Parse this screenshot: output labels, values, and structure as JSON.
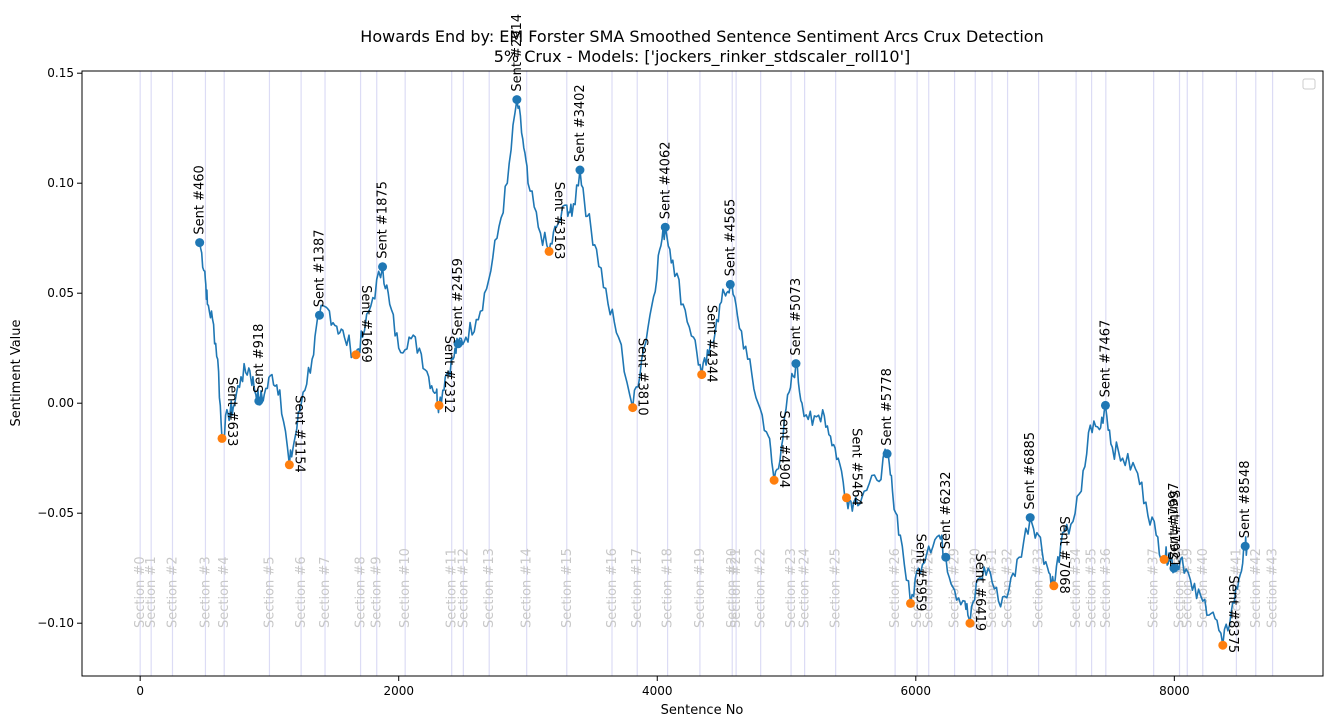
{
  "chart_data": {
    "type": "line",
    "title": "Howards End by: EM Forster SMA Smoothed Sentence Sentiment Arcs Crux Detection",
    "subtitle": "5% Crux -  Models: ['jockers_rinker_stdscaler_roll10']",
    "xlabel": "Sentence No",
    "ylabel": "Sentiment Value",
    "xlim": [
      -450,
      9150
    ],
    "ylim": [
      -0.124,
      0.151
    ],
    "xticks": [
      0,
      2000,
      4000,
      6000,
      8000
    ],
    "xtick_labels": [
      "0",
      "2000",
      "4000",
      "6000",
      "8000"
    ],
    "yticks": [
      -0.1,
      -0.05,
      0.0,
      0.05,
      0.1,
      0.15
    ],
    "ytick_labels": [
      "−0.10",
      "−0.05",
      "0.00",
      "0.05",
      "0.10",
      "0.15"
    ],
    "grid": false,
    "legend": "top-right (empty)",
    "colors": {
      "line": "#1f77b4",
      "peak": "#1f77b4",
      "valley": "#ff7f0e",
      "section_line": "#dcdcf5",
      "section_text": "#c8c8c8"
    },
    "series": [
      {
        "key": "smoothed",
        "points": [
          [
            460,
            0.073
          ],
          [
            500,
            0.06
          ],
          [
            520,
            0.045
          ],
          [
            560,
            0.038
          ],
          [
            600,
            0.02
          ],
          [
            633,
            -0.016
          ],
          [
            680,
            -0.005
          ],
          [
            720,
            -0.002
          ],
          [
            780,
            0.012
          ],
          [
            840,
            0.016
          ],
          [
            880,
            0.008
          ],
          [
            918,
            0.001
          ],
          [
            960,
            0.004
          ],
          [
            1020,
            0.013
          ],
          [
            1080,
            0.006
          ],
          [
            1154,
            -0.028
          ],
          [
            1200,
            -0.015
          ],
          [
            1260,
            0.005
          ],
          [
            1330,
            0.02
          ],
          [
            1387,
            0.04
          ],
          [
            1450,
            0.043
          ],
          [
            1520,
            0.035
          ],
          [
            1580,
            0.03
          ],
          [
            1669,
            0.022
          ],
          [
            1720,
            0.03
          ],
          [
            1800,
            0.048
          ],
          [
            1875,
            0.062
          ],
          [
            1930,
            0.045
          ],
          [
            2000,
            0.025
          ],
          [
            2080,
            0.03
          ],
          [
            2160,
            0.025
          ],
          [
            2232,
            0.012
          ],
          [
            2290,
            0.005
          ],
          [
            2312,
            -0.001
          ],
          [
            2360,
            0.012
          ],
          [
            2420,
            0.02
          ],
          [
            2459,
            0.027
          ],
          [
            2520,
            0.03
          ],
          [
            2600,
            0.038
          ],
          [
            2680,
            0.052
          ],
          [
            2760,
            0.075
          ],
          [
            2840,
            0.1
          ],
          [
            2914,
            0.138
          ],
          [
            2960,
            0.12
          ],
          [
            3000,
            0.1
          ],
          [
            3080,
            0.08
          ],
          [
            3163,
            0.069
          ],
          [
            3220,
            0.08
          ],
          [
            3300,
            0.09
          ],
          [
            3340,
            0.085
          ],
          [
            3402,
            0.106
          ],
          [
            3460,
            0.085
          ],
          [
            3530,
            0.07
          ],
          [
            3620,
            0.045
          ],
          [
            3700,
            0.03
          ],
          [
            3810,
            -0.002
          ],
          [
            3880,
            0.02
          ],
          [
            3960,
            0.045
          ],
          [
            4020,
            0.07
          ],
          [
            4062,
            0.08
          ],
          [
            4120,
            0.065
          ],
          [
            4200,
            0.045
          ],
          [
            4280,
            0.03
          ],
          [
            4344,
            0.013
          ],
          [
            4400,
            0.022
          ],
          [
            4460,
            0.038
          ],
          [
            4520,
            0.05
          ],
          [
            4565,
            0.054
          ],
          [
            4620,
            0.04
          ],
          [
            4700,
            0.02
          ],
          [
            4780,
            0.0
          ],
          [
            4860,
            -0.015
          ],
          [
            4904,
            -0.035
          ],
          [
            4960,
            -0.02
          ],
          [
            5020,
            0.005
          ],
          [
            5073,
            0.018
          ],
          [
            5120,
            0.0
          ],
          [
            5200,
            -0.01
          ],
          [
            5280,
            -0.003
          ],
          [
            5340,
            -0.015
          ],
          [
            5400,
            -0.025
          ],
          [
            5464,
            -0.043
          ],
          [
            5520,
            -0.045
          ],
          [
            5600,
            -0.04
          ],
          [
            5700,
            -0.035
          ],
          [
            5778,
            -0.023
          ],
          [
            5820,
            -0.04
          ],
          [
            5880,
            -0.06
          ],
          [
            5959,
            -0.091
          ],
          [
            6020,
            -0.075
          ],
          [
            6100,
            -0.065
          ],
          [
            6180,
            -0.06
          ],
          [
            6232,
            -0.07
          ],
          [
            6300,
            -0.085
          ],
          [
            6380,
            -0.09
          ],
          [
            6419,
            -0.1
          ],
          [
            6480,
            -0.08
          ],
          [
            6560,
            -0.075
          ],
          [
            6640,
            -0.09
          ],
          [
            6720,
            -0.085
          ],
          [
            6800,
            -0.07
          ],
          [
            6885,
            -0.052
          ],
          [
            6950,
            -0.06
          ],
          [
            7020,
            -0.075
          ],
          [
            7068,
            -0.083
          ],
          [
            7120,
            -0.065
          ],
          [
            7200,
            -0.055
          ],
          [
            7280,
            -0.04
          ],
          [
            7350,
            -0.01
          ],
          [
            7420,
            -0.012
          ],
          [
            7467,
            -0.001
          ],
          [
            7520,
            -0.02
          ],
          [
            7600,
            -0.025
          ],
          [
            7700,
            -0.03
          ],
          [
            7780,
            -0.045
          ],
          [
            7860,
            -0.06
          ],
          [
            7921,
            -0.071
          ],
          [
            7960,
            -0.068
          ],
          [
            7997,
            -0.075
          ],
          [
            8060,
            -0.07
          ],
          [
            8140,
            -0.085
          ],
          [
            8220,
            -0.09
          ],
          [
            8300,
            -0.095
          ],
          [
            8375,
            -0.11
          ],
          [
            8440,
            -0.095
          ],
          [
            8500,
            -0.08
          ],
          [
            8548,
            -0.065
          ],
          [
            8570,
            -0.064
          ]
        ]
      }
    ],
    "peaks": [
      {
        "x": 460,
        "y": 0.073,
        "label": "Sent #460"
      },
      {
        "x": 918,
        "y": 0.001,
        "label": "Sent #918"
      },
      {
        "x": 1387,
        "y": 0.04,
        "label": "Sent #1387"
      },
      {
        "x": 1875,
        "y": 0.062,
        "label": "Sent #1875"
      },
      {
        "x": 2459,
        "y": 0.027,
        "label": "Sent #2459"
      },
      {
        "x": 2914,
        "y": 0.138,
        "label": "Sent #2914"
      },
      {
        "x": 3402,
        "y": 0.106,
        "label": "Sent #3402"
      },
      {
        "x": 4062,
        "y": 0.08,
        "label": "Sent #4062"
      },
      {
        "x": 4565,
        "y": 0.054,
        "label": "Sent #4565"
      },
      {
        "x": 5073,
        "y": 0.018,
        "label": "Sent #5073"
      },
      {
        "x": 5778,
        "y": -0.023,
        "label": "Sent #5778"
      },
      {
        "x": 6232,
        "y": -0.07,
        "label": "Sent #6232"
      },
      {
        "x": 6885,
        "y": -0.052,
        "label": "Sent #6885"
      },
      {
        "x": 7467,
        "y": -0.001,
        "label": "Sent #7467"
      },
      {
        "x": 7997,
        "y": -0.075,
        "label": "Sent #7997"
      },
      {
        "x": 8548,
        "y": -0.065,
        "label": "Sent #8548"
      }
    ],
    "valleys": [
      {
        "x": 633,
        "y": -0.016,
        "label": "Sent #633"
      },
      {
        "x": 1154,
        "y": -0.028,
        "label": "Sent #1154"
      },
      {
        "x": 1669,
        "y": 0.022,
        "label": "Sent #1669"
      },
      {
        "x": 2312,
        "y": -0.001,
        "label": "Sent #2312"
      },
      {
        "x": 3163,
        "y": 0.069,
        "label": "Sent #3163"
      },
      {
        "x": 3810,
        "y": -0.002,
        "label": "Sent #3810"
      },
      {
        "x": 4344,
        "y": 0.013,
        "label": "Sent #4344"
      },
      {
        "x": 4904,
        "y": -0.035,
        "label": "Sent #4904"
      },
      {
        "x": 5464,
        "y": -0.043,
        "label": "Sent #5464"
      },
      {
        "x": 5959,
        "y": -0.091,
        "label": "Sent #5959"
      },
      {
        "x": 6419,
        "y": -0.1,
        "label": "Sent #6419"
      },
      {
        "x": 7068,
        "y": -0.083,
        "label": "Sent #7068"
      },
      {
        "x": 7921,
        "y": -0.071,
        "label": "Sent #7921"
      },
      {
        "x": 8375,
        "y": -0.11,
        "label": "Sent #8375"
      }
    ],
    "sections": [
      {
        "x": 0,
        "label": "Section #0"
      },
      {
        "x": 85,
        "label": "Section #1"
      },
      {
        "x": 250,
        "label": "Section #2"
      },
      {
        "x": 505,
        "label": "Section #3"
      },
      {
        "x": 650,
        "label": "Section #4"
      },
      {
        "x": 1000,
        "label": "Section #5"
      },
      {
        "x": 1245,
        "label": "Section #6"
      },
      {
        "x": 1430,
        "label": "Section #7"
      },
      {
        "x": 1705,
        "label": "Section #8"
      },
      {
        "x": 1830,
        "label": "Section #9"
      },
      {
        "x": 2050,
        "label": "Section #10"
      },
      {
        "x": 2410,
        "label": "Section #11"
      },
      {
        "x": 2500,
        "label": "Section #12"
      },
      {
        "x": 2700,
        "label": "Section #13"
      },
      {
        "x": 2990,
        "label": "Section #14"
      },
      {
        "x": 3300,
        "label": "Section #15"
      },
      {
        "x": 3650,
        "label": "Section #16"
      },
      {
        "x": 3845,
        "label": "Section #17"
      },
      {
        "x": 4080,
        "label": "Section #18"
      },
      {
        "x": 4330,
        "label": "Section #19"
      },
      {
        "x": 4580,
        "label": "Section #20"
      },
      {
        "x": 4610,
        "label": "Section #21"
      },
      {
        "x": 4800,
        "label": "Section #22"
      },
      {
        "x": 5035,
        "label": "Section #23"
      },
      {
        "x": 5140,
        "label": "Section #24"
      },
      {
        "x": 5380,
        "label": "Section #25"
      },
      {
        "x": 5840,
        "label": "Section #26"
      },
      {
        "x": 6010,
        "label": "Section #27"
      },
      {
        "x": 6100,
        "label": "Section #28"
      },
      {
        "x": 6300,
        "label": "Section #29"
      },
      {
        "x": 6460,
        "label": "Section #30"
      },
      {
        "x": 6590,
        "label": "Section #31"
      },
      {
        "x": 6710,
        "label": "Section #32"
      },
      {
        "x": 6950,
        "label": "Section #33"
      },
      {
        "x": 7240,
        "label": "Section #34"
      },
      {
        "x": 7360,
        "label": "Section #35"
      },
      {
        "x": 7470,
        "label": "Section #36"
      },
      {
        "x": 7840,
        "label": "Section #37"
      },
      {
        "x": 8040,
        "label": "Section #38"
      },
      {
        "x": 8100,
        "label": "Section #39"
      },
      {
        "x": 8220,
        "label": "Section #40"
      },
      {
        "x": 8480,
        "label": "Section #41"
      },
      {
        "x": 8630,
        "label": "Section #42"
      },
      {
        "x": 8760,
        "label": "Section #43"
      }
    ]
  }
}
